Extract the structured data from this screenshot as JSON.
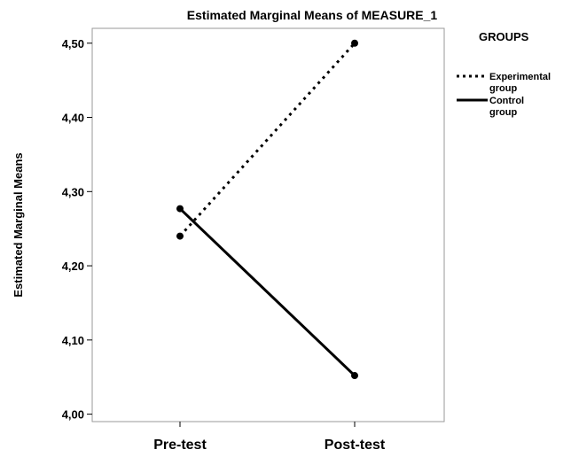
{
  "chart_data": {
    "type": "line",
    "title": "Estimated Marginal Means of MEASURE_1",
    "xlabel": "",
    "ylabel": "Estimated Marginal Means",
    "categories": [
      "Pre-test",
      "Post-test"
    ],
    "ylim": [
      3.99,
      4.52
    ],
    "yticks": [
      "4,00",
      "4,10",
      "4,20",
      "4,30",
      "4,40",
      "4,50"
    ],
    "ytick_values": [
      4.0,
      4.1,
      4.2,
      4.3,
      4.4,
      4.5
    ],
    "grid": false,
    "legend_position": "right",
    "legend_title": "GROUPS",
    "series": [
      {
        "name": "Experimental group",
        "values": [
          4.24,
          4.5
        ],
        "style": "dotted",
        "color": "#000000"
      },
      {
        "name": "Control group",
        "values": [
          4.277,
          4.052
        ],
        "style": "solid",
        "color": "#000000"
      }
    ]
  }
}
